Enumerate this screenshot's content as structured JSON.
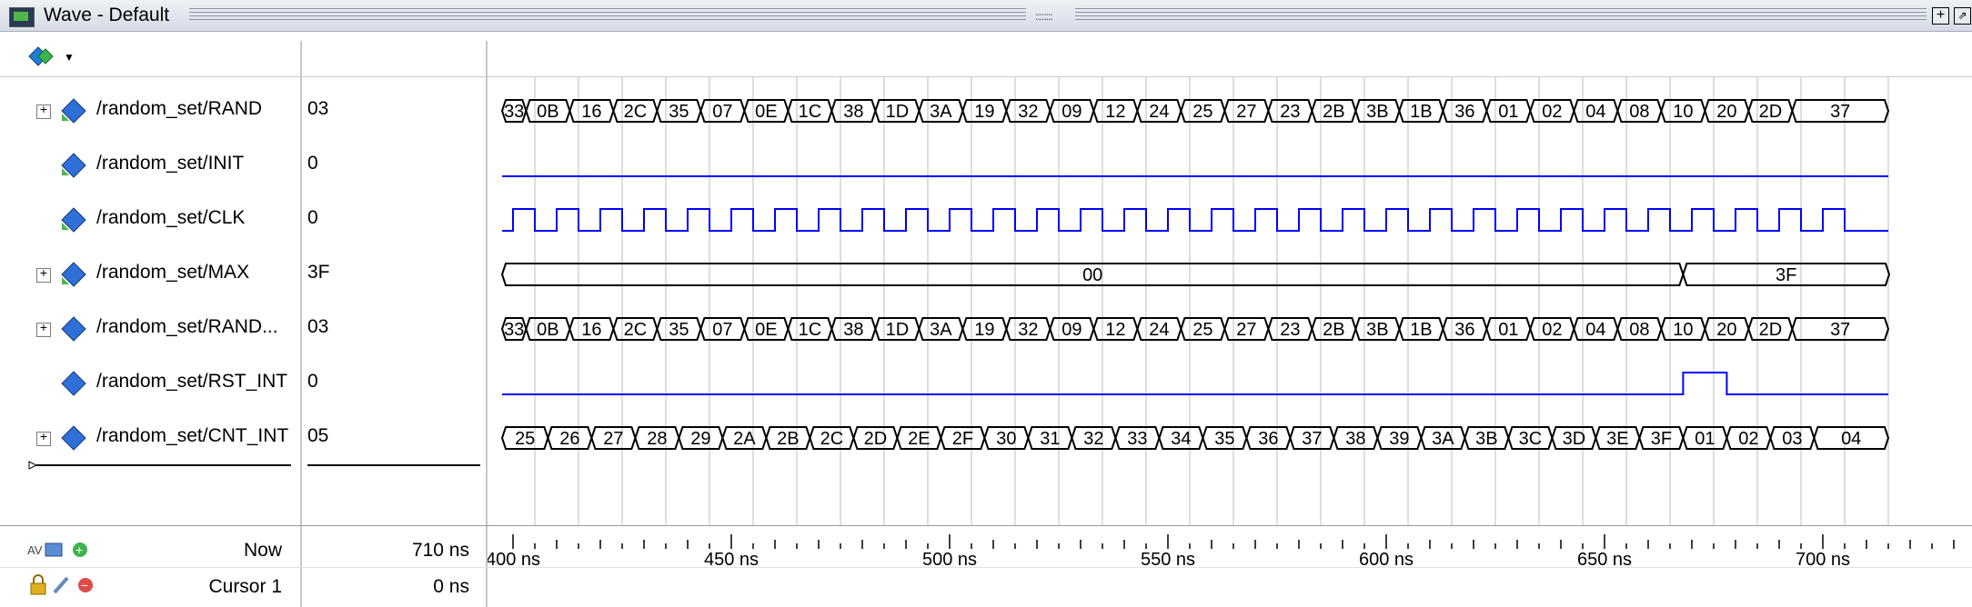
{
  "window": {
    "title": "Wave - Default"
  },
  "signals": [
    {
      "name": "/random_set/RAND",
      "value": "03",
      "expandable": true,
      "kind": "bus-green",
      "bus": [
        "33",
        "0B",
        "16",
        "2C",
        "35",
        "07",
        "0E",
        "1C",
        "38",
        "1D",
        "3A",
        "19",
        "32",
        "09",
        "12",
        "24",
        "25",
        "27",
        "23",
        "2B",
        "3B",
        "1B",
        "36",
        "01",
        "02",
        "04",
        "08",
        "10",
        "20",
        "2D",
        "37"
      ]
    },
    {
      "name": "/random_set/INIT",
      "value": "0",
      "expandable": false,
      "kind": "low"
    },
    {
      "name": "/random_set/CLK",
      "value": "0",
      "expandable": false,
      "kind": "clock"
    },
    {
      "name": "/random_set/MAX",
      "value": "3F",
      "expandable": true,
      "kind": "bus-max",
      "bus": [
        "00",
        "3F"
      ]
    },
    {
      "name": "/random_set/RAND...",
      "value": "03",
      "expandable": true,
      "kind": "bus-blue",
      "bus": [
        "33",
        "0B",
        "16",
        "2C",
        "35",
        "07",
        "0E",
        "1C",
        "38",
        "1D",
        "3A",
        "19",
        "32",
        "09",
        "12",
        "24",
        "25",
        "27",
        "23",
        "2B",
        "3B",
        "1B",
        "36",
        "01",
        "02",
        "04",
        "08",
        "10",
        "20",
        "2D",
        "37"
      ]
    },
    {
      "name": "/random_set/RST_INT",
      "value": "0",
      "expandable": false,
      "kind": "pulse"
    },
    {
      "name": "/random_set/CNT_INT",
      "value": "05",
      "expandable": true,
      "kind": "bus-cnt",
      "bus": [
        "25",
        "26",
        "27",
        "28",
        "29",
        "2A",
        "2B",
        "2C",
        "2D",
        "2E",
        "2F",
        "30",
        "31",
        "32",
        "33",
        "34",
        "35",
        "36",
        "37",
        "38",
        "39",
        "3A",
        "3B",
        "3C",
        "3D",
        "3E",
        "3F",
        "01",
        "02",
        "03",
        "04"
      ]
    }
  ],
  "footer": {
    "now_label": "Now",
    "now_value": "710 ns",
    "cursor_label": "Cursor 1",
    "cursor_value": "0 ns"
  },
  "timeline": {
    "labels": [
      "400 ns",
      "450 ns",
      "500 ns",
      "550 ns",
      "600 ns",
      "650 ns",
      "700 ns"
    ]
  },
  "colors": {
    "wave": "#0000ff",
    "bus": "#000000",
    "grid": "#bdbdbd"
  }
}
